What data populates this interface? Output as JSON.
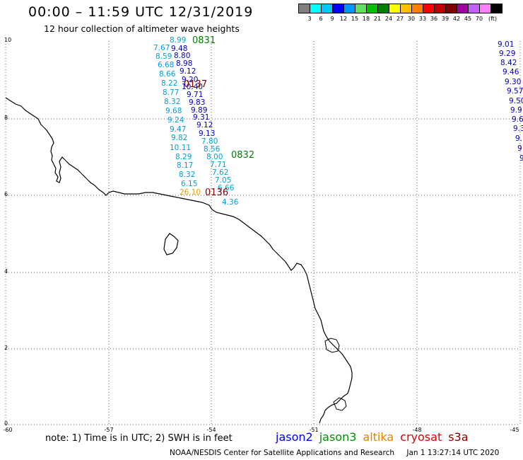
{
  "header": {
    "title": "00:00 – 11:59 UTC 12/31/2019",
    "subtitle": "12 hour collection of altimeter wave heights"
  },
  "color_scale": {
    "colors": [
      "#808080",
      "#00ffff",
      "#00c8ff",
      "#0000ff",
      "#0096ff",
      "#60e060",
      "#00c000",
      "#008000",
      "#ffff00",
      "#ffc000",
      "#ff8000",
      "#ff0000",
      "#c00000",
      "#800000",
      "#a000a0",
      "#c060ff",
      "#ff80ff",
      "#000000"
    ],
    "labels": [
      "3",
      "6",
      "9",
      "12",
      "15",
      "18",
      "21",
      "24",
      "27",
      "30",
      "33",
      "36",
      "39",
      "42",
      "45",
      "70"
    ],
    "unit": "(ft)"
  },
  "axes": {
    "lat_labels": [
      "10",
      "8",
      "6",
      "4",
      "2",
      "0"
    ],
    "lon_labels": [
      "-60",
      "-57",
      "-54",
      "-51",
      "-48",
      "-45"
    ]
  },
  "passes": [
    {
      "label": "0831",
      "color": "#008000"
    },
    {
      "label": "0137",
      "color": "#800000"
    },
    {
      "label": "0832",
      "color": "#008000"
    },
    {
      "label": "0136",
      "color": "#800000"
    }
  ],
  "wave_heights": {
    "track_a": {
      "color": "#00a0d8",
      "values": [
        "8.99",
        "7.67",
        "8.59",
        "6.68",
        "8.66",
        "8.22",
        "8.77",
        "8.32",
        "9.68",
        "9.24",
        "9.47",
        "9.82",
        "10.11",
        "8.29",
        "8.17",
        "8.32",
        "6.15"
      ]
    },
    "track_b": {
      "color": "#0000c0",
      "values": [
        "9.48",
        "8.80",
        "8.98",
        "9.12",
        "9.20",
        "10.40",
        "9.71",
        "9.83",
        "9.89",
        "9.31",
        "9.12",
        "9.13",
        "7.80",
        "8.56",
        "8.00",
        "7.71",
        "7.62",
        "7.05",
        "6.66",
        "4.36"
      ]
    },
    "track_c": {
      "color": "#0000c0",
      "values": [
        "9.01",
        "9.29",
        "8.42",
        "9.46",
        "9.30",
        "9.57",
        "9.50",
        "9.9",
        "9.6",
        "9.3",
        "9.",
        "9",
        "9"
      ]
    },
    "altika_value": {
      "value": "26.10",
      "color": "#e0a000"
    }
  },
  "satellite_legend": [
    {
      "name": "jason2",
      "color": "#0000ff"
    },
    {
      "name": "jason3",
      "color": "#009000"
    },
    {
      "name": "altika",
      "color": "#e08000"
    },
    {
      "name": "cryosat",
      "color": "#e00000"
    },
    {
      "name": "s3a",
      "color": "#800000"
    }
  ],
  "footer": {
    "note": "note: 1) Time is in UTC; 2) SWH is in feet",
    "credit": "NOAA/NESDIS Center for Satellite Applications and Research",
    "timestamp": "Jan 1 13:27:14 UTC 2020"
  }
}
